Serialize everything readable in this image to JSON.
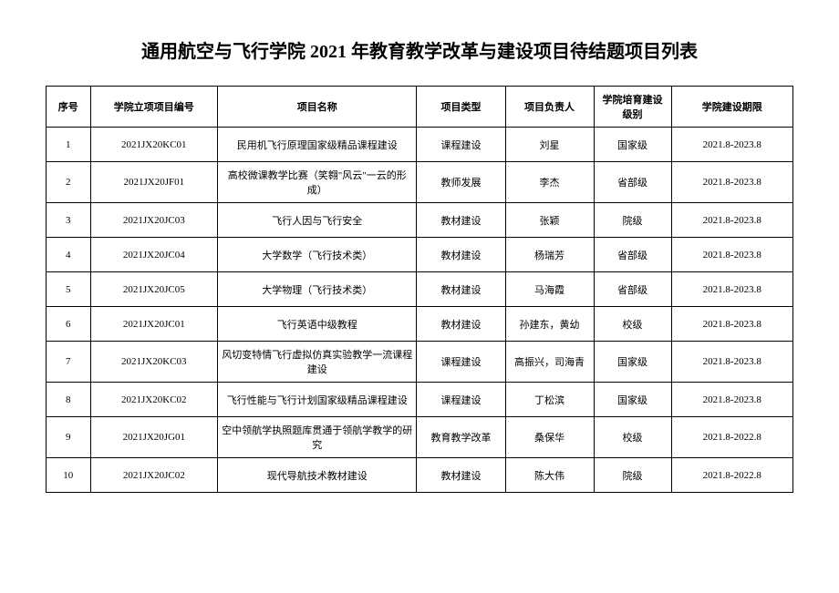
{
  "title": "通用航空与飞行学院 2021 年教育教学改革与建设项目待结题项目列表",
  "columns": [
    "序号",
    "学院立项项目编号",
    "项目名称",
    "项目类型",
    "项目负责人",
    "学院培育建设级别",
    "学院建设期限"
  ],
  "rows": [
    {
      "seq": "1",
      "code": "2021JX20KC01",
      "name": "民用机飞行原理国家级精品课程建设",
      "type": "课程建设",
      "person": "刘星",
      "level": "国家级",
      "period": "2021.8-2023.8"
    },
    {
      "seq": "2",
      "code": "2021JX20JF01",
      "name": "高校微课教学比赛（笑翱\"风云\"一云的形成）",
      "type": "教师发展",
      "person": "李杰",
      "level": "省部级",
      "period": "2021.8-2023.8"
    },
    {
      "seq": "3",
      "code": "2021JX20JC03",
      "name": "飞行人因与飞行安全",
      "type": "教材建设",
      "person": "张颖",
      "level": "院级",
      "period": "2021.8-2023.8"
    },
    {
      "seq": "4",
      "code": "2021JX20JC04",
      "name": "大学数学（飞行技术类）",
      "type": "教材建设",
      "person": "杨瑞芳",
      "level": "省部级",
      "period": "2021.8-2023.8"
    },
    {
      "seq": "5",
      "code": "2021JX20JC05",
      "name": "大学物理（飞行技术类）",
      "type": "教材建设",
      "person": "马海霞",
      "level": "省部级",
      "period": "2021.8-2023.8"
    },
    {
      "seq": "6",
      "code": "2021JX20JC01",
      "name": "飞行英语中级教程",
      "type": "教材建设",
      "person": "孙建东，黄幼",
      "level": "校级",
      "period": "2021.8-2023.8"
    },
    {
      "seq": "7",
      "code": "2021JX20KC03",
      "name": "风切变特情飞行虚拟仿真实验教学一流课程建设",
      "type": "课程建设",
      "person": "高振兴，司海青",
      "level": "国家级",
      "period": "2021.8-2023.8"
    },
    {
      "seq": "8",
      "code": "2021JX20KC02",
      "name": "飞行性能与飞行计划国家级精品课程建设",
      "type": "课程建设",
      "person": "丁松滨",
      "level": "国家级",
      "period": "2021.8-2023.8"
    },
    {
      "seq": "9",
      "code": "2021JX20JG01",
      "name": "空中领航学执照题库贯通于领航学教学的研究",
      "type": "教育教学改革",
      "person": "桑保华",
      "level": "校级",
      "period": "2021.8-2022.8"
    },
    {
      "seq": "10",
      "code": "2021JX20JC02",
      "name": "现代导航技术教材建设",
      "type": "教材建设",
      "person": "陈大伟",
      "level": "院级",
      "period": "2021.8-2022.8"
    }
  ]
}
